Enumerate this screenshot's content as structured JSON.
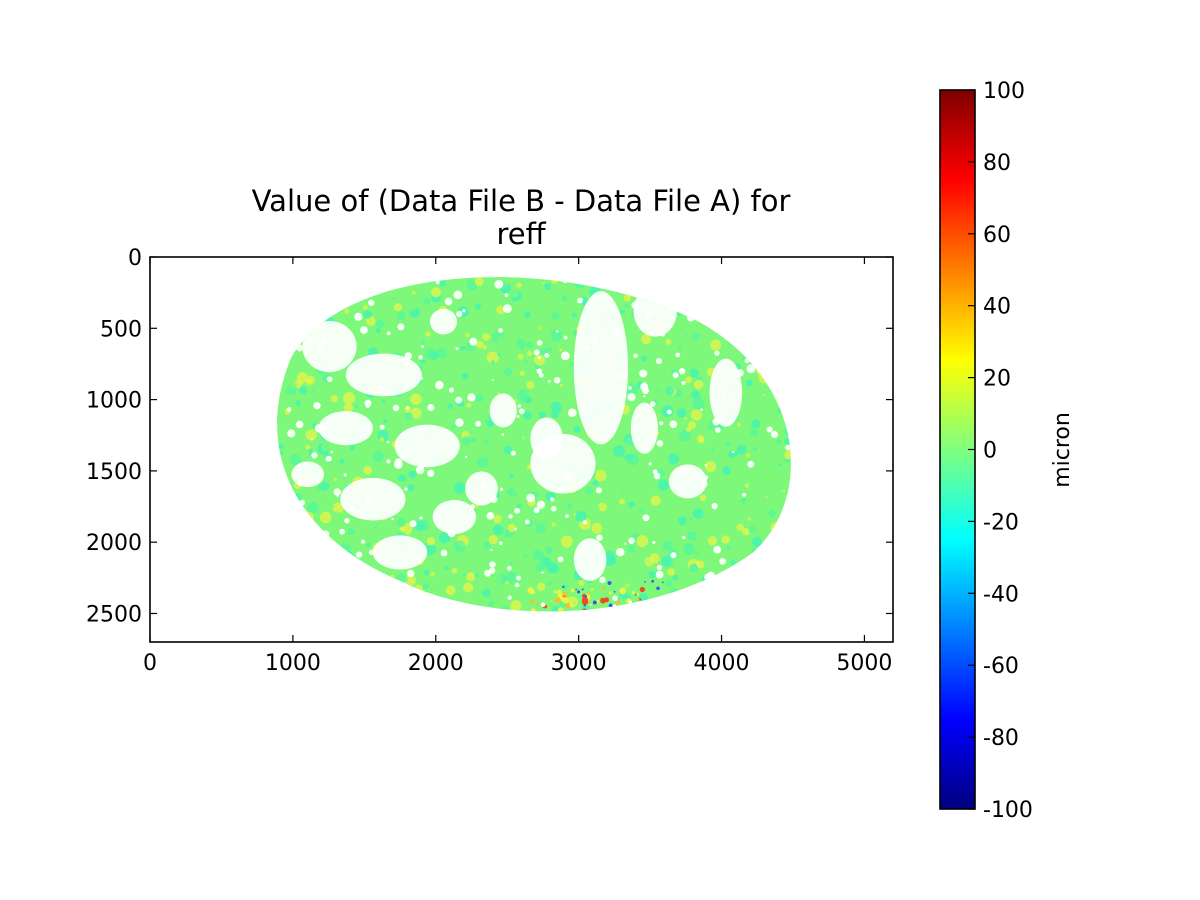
{
  "chart_data": {
    "type": "heatmap",
    "title": [
      "Value of (Data File B - Data File A) for",
      "reff"
    ],
    "xlabel": "",
    "ylabel": "",
    "x_ticks": [
      "0",
      "1000",
      "2000",
      "3000",
      "4000",
      "5000"
    ],
    "y_ticks": [
      "0",
      "500",
      "1000",
      "1500",
      "2000",
      "2500"
    ],
    "xlim": [
      0,
      5200
    ],
    "ylim": [
      2700,
      0
    ],
    "grid": false,
    "colorbar": {
      "label": "micron",
      "colormap": "jet",
      "ticks": [
        "100",
        "80",
        "60",
        "40",
        "20",
        "0",
        "-20",
        "-40",
        "-60",
        "-80",
        "-100"
      ],
      "range": [
        -100,
        100
      ],
      "colors": [
        "#00007f",
        "#0000ff",
        "#007fff",
        "#00ffff",
        "#7fff7f",
        "#ffff00",
        "#ff7f00",
        "#ff0000",
        "#7f0000"
      ]
    },
    "data_region": {
      "shape": "earth-disk",
      "x_extent": [
        800,
        4600
      ],
      "y_extent": [
        80,
        2570
      ],
      "dominant_value": 0,
      "value_range_observed": [
        -20,
        40
      ],
      "missing_color": "#ffffff",
      "colors": {
        "base": "#7ef87a",
        "cyan_green": "#55f79e",
        "teal": "#3ff3b8",
        "yellow": "#e8f54a",
        "orange": "#f5c030",
        "red": "#f04a20",
        "blue": "#2f5bf0"
      }
    }
  }
}
